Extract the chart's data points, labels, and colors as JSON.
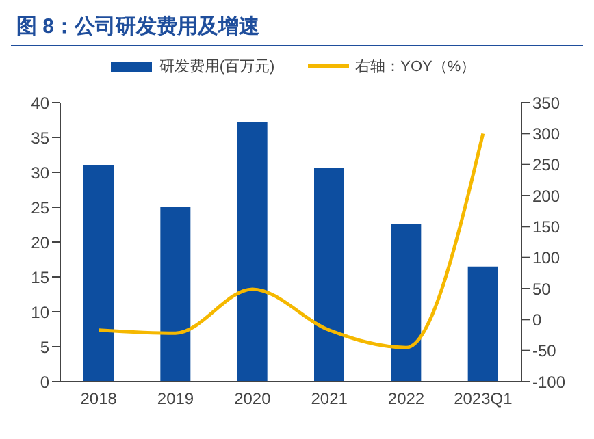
{
  "chart_data": {
    "type": "bar",
    "title": "图 8：公司研发费用及增速",
    "categories": [
      "2018",
      "2019",
      "2020",
      "2021",
      "2022",
      "2023Q1"
    ],
    "series": [
      {
        "name": "研发费用(百万元)",
        "color": "#0d4ea0",
        "values": [
          31,
          25,
          37.2,
          30.6,
          22.6,
          16.5
        ]
      },
      {
        "name": "右轴：YOY（%）",
        "type": "line",
        "axis": "y2",
        "color": "#f5b800",
        "values": [
          -17,
          -22,
          49,
          -17,
          -45,
          300
        ]
      }
    ],
    "ylim": [
      0,
      40
    ],
    "yticks": [
      0,
      5,
      10,
      15,
      20,
      25,
      30,
      35,
      40
    ],
    "y2lim": [
      -100,
      350
    ],
    "y2ticks": [
      -100,
      -50,
      0,
      50,
      100,
      150,
      200,
      250,
      300,
      350
    ],
    "grid": false,
    "legend": "top",
    "marker": "none"
  }
}
